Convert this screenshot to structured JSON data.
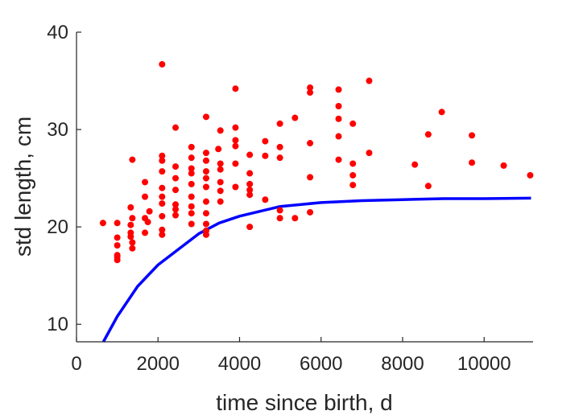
{
  "chart_data": {
    "type": "scatter",
    "title": "",
    "xlabel": "time since birth, d",
    "ylabel": "std length, cm",
    "xlim": [
      0,
      11200
    ],
    "ylim": [
      8.2,
      40
    ],
    "xticks": [
      0,
      2000,
      4000,
      6000,
      8000,
      10000
    ],
    "yticks": [
      10,
      20,
      30,
      40
    ],
    "grid": false,
    "legend": "none",
    "series": [
      {
        "kind": "scatter",
        "color": "#ff0000",
        "points": [
          [
            650,
            20.4
          ],
          [
            1000,
            20.4
          ],
          [
            1000,
            18.9
          ],
          [
            1000,
            18.1
          ],
          [
            1000,
            17.1
          ],
          [
            1000,
            16.6
          ],
          [
            1000,
            16.9
          ],
          [
            1330,
            22.0
          ],
          [
            1330,
            20.2
          ],
          [
            1330,
            19.4
          ],
          [
            1330,
            19.0
          ],
          [
            1370,
            26.9
          ],
          [
            1370,
            18.4
          ],
          [
            1370,
            17.8
          ],
          [
            1370,
            20.9
          ],
          [
            1680,
            24.6
          ],
          [
            1680,
            23.1
          ],
          [
            1680,
            20.9
          ],
          [
            1680,
            19.4
          ],
          [
            1750,
            20.5
          ],
          [
            1790,
            21.6
          ],
          [
            2100,
            36.7
          ],
          [
            2100,
            27.3
          ],
          [
            2100,
            26.8
          ],
          [
            2100,
            25.7
          ],
          [
            2100,
            24.0
          ],
          [
            2100,
            23.1
          ],
          [
            2100,
            22.4
          ],
          [
            2100,
            21.1
          ],
          [
            2100,
            19.7
          ],
          [
            2100,
            19.2
          ],
          [
            2430,
            30.2
          ],
          [
            2430,
            26.2
          ],
          [
            2430,
            25.0
          ],
          [
            2430,
            23.8
          ],
          [
            2430,
            22.3
          ],
          [
            2430,
            21.8
          ],
          [
            2430,
            21.2
          ],
          [
            2820,
            28.2
          ],
          [
            2820,
            27.1
          ],
          [
            2820,
            26.0
          ],
          [
            2820,
            25.5
          ],
          [
            2820,
            24.4
          ],
          [
            2820,
            23.1
          ],
          [
            2820,
            22.1
          ],
          [
            2820,
            21.4
          ],
          [
            2820,
            20.3
          ],
          [
            3180,
            31.3
          ],
          [
            3180,
            27.6
          ],
          [
            3180,
            26.8
          ],
          [
            3180,
            25.7
          ],
          [
            3180,
            25.0
          ],
          [
            3180,
            24.1
          ],
          [
            3180,
            22.6
          ],
          [
            3180,
            21.4
          ],
          [
            3180,
            20.3
          ],
          [
            3180,
            19.6
          ],
          [
            3180,
            19.2
          ],
          [
            3480,
            28.0
          ],
          [
            3530,
            29.9
          ],
          [
            3530,
            26.5
          ],
          [
            3530,
            25.9
          ],
          [
            3530,
            24.6
          ],
          [
            3530,
            23.7
          ],
          [
            3530,
            22.6
          ],
          [
            3900,
            34.2
          ],
          [
            3900,
            30.2
          ],
          [
            3900,
            28.9
          ],
          [
            3900,
            28.3
          ],
          [
            3900,
            26.5
          ],
          [
            3900,
            24.1
          ],
          [
            4250,
            27.4
          ],
          [
            4250,
            25.5
          ],
          [
            4250,
            24.4
          ],
          [
            4250,
            23.8
          ],
          [
            4250,
            23.3
          ],
          [
            4250,
            20.0
          ],
          [
            4630,
            28.8
          ],
          [
            4630,
            27.3
          ],
          [
            4630,
            22.8
          ],
          [
            4990,
            30.6
          ],
          [
            4990,
            28.2
          ],
          [
            4990,
            27.1
          ],
          [
            4990,
            21.7
          ],
          [
            4990,
            20.9
          ],
          [
            5360,
            31.2
          ],
          [
            5360,
            20.9
          ],
          [
            5730,
            34.3
          ],
          [
            5730,
            33.8
          ],
          [
            5730,
            28.6
          ],
          [
            5730,
            25.1
          ],
          [
            5730,
            21.5
          ],
          [
            6430,
            34.1
          ],
          [
            6430,
            32.4
          ],
          [
            6430,
            31.1
          ],
          [
            6430,
            29.3
          ],
          [
            6430,
            26.9
          ],
          [
            6780,
            30.6
          ],
          [
            6780,
            26.5
          ],
          [
            6780,
            25.3
          ],
          [
            6780,
            24.3
          ],
          [
            7180,
            35.0
          ],
          [
            7180,
            27.6
          ],
          [
            8300,
            26.4
          ],
          [
            8630,
            29.5
          ],
          [
            8630,
            24.2
          ],
          [
            8960,
            31.8
          ],
          [
            9700,
            29.4
          ],
          [
            9700,
            26.6
          ],
          [
            10480,
            26.3
          ],
          [
            11130,
            25.3
          ]
        ]
      },
      {
        "kind": "line",
        "color": "#0000ff",
        "points": [
          [
            660,
            8.2
          ],
          [
            1000,
            10.8
          ],
          [
            1500,
            13.9
          ],
          [
            2000,
            16.1
          ],
          [
            2500,
            17.7
          ],
          [
            3000,
            19.3
          ],
          [
            3500,
            20.4
          ],
          [
            4000,
            21.1
          ],
          [
            5000,
            22.1
          ],
          [
            6000,
            22.5
          ],
          [
            7000,
            22.7
          ],
          [
            8000,
            22.8
          ],
          [
            9000,
            22.9
          ],
          [
            10000,
            22.9
          ],
          [
            11150,
            22.95
          ]
        ]
      }
    ]
  }
}
